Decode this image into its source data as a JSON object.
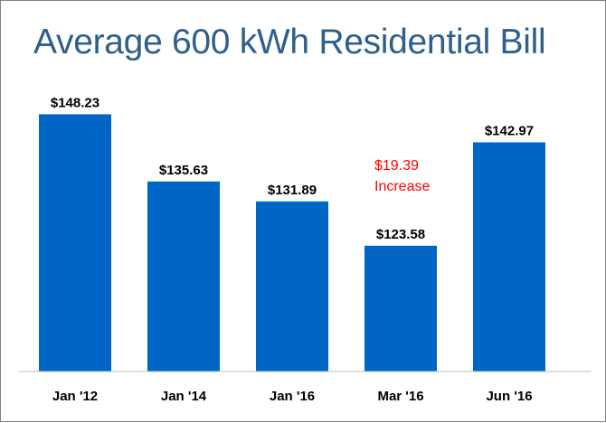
{
  "chart_data": {
    "type": "bar",
    "title": "Average 600 kWh Residential Bill",
    "categories": [
      "Jan '12",
      "Jan '14",
      "Jan '16",
      "Mar '16",
      "Jun '16"
    ],
    "values": [
      148.23,
      135.63,
      131.89,
      123.58,
      142.97
    ],
    "value_labels": [
      "$148.23",
      "$135.63",
      "$131.89",
      "$123.58",
      "$142.97"
    ],
    "xlabel": "",
    "ylabel": "",
    "ylim": [
      100,
      150
    ],
    "grid": false,
    "annotation": {
      "line1": "$19.39",
      "line2": "Increase",
      "color": "#ff0000"
    },
    "bar_color": "#0066c5"
  }
}
